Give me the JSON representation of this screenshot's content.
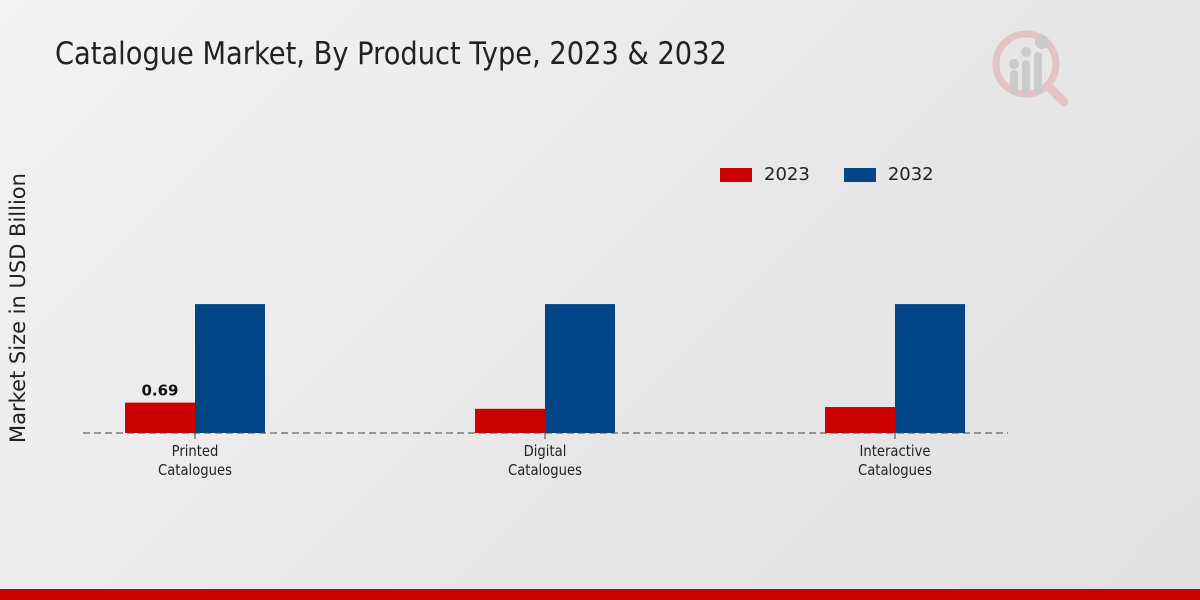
{
  "chart_data": {
    "type": "bar",
    "title": "Catalogue Market, By Product Type, 2023 & 2032",
    "xlabel": "",
    "ylabel": "Market Size in USD Billion",
    "categories": [
      "Printed\nCatalogues",
      "Digital\nCatalogues",
      "Interactive\nCatalogues"
    ],
    "series": [
      {
        "name": "2023",
        "color": "#cc0000",
        "values": [
          0.69,
          0.55,
          0.59
        ],
        "data_labels": [
          "0.69",
          null,
          null
        ]
      },
      {
        "name": "2032",
        "color": "#004687",
        "values": [
          2.93,
          2.93,
          2.93
        ]
      }
    ],
    "ylim": [
      0,
      4
    ],
    "grid": false,
    "legend_position": "top-right"
  }
}
